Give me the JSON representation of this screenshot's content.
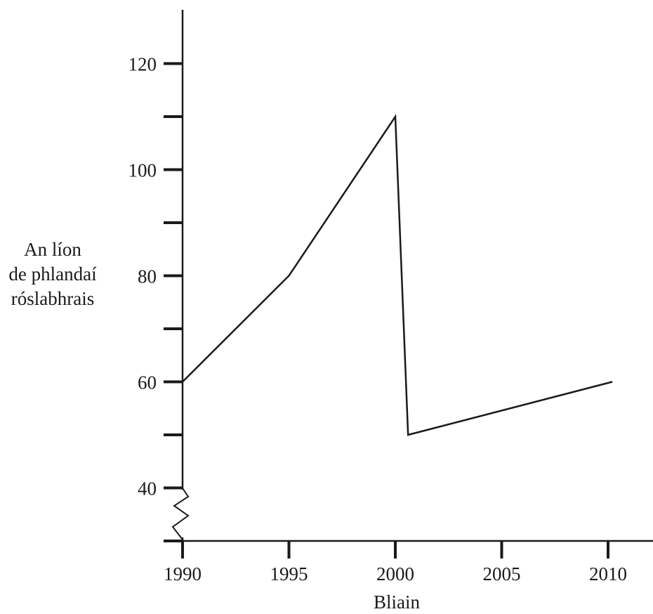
{
  "chart_data": {
    "type": "line",
    "xlabel": "Bliain",
    "ylabel_lines": [
      "An líon",
      "de phlandaí",
      "róslabhrais"
    ],
    "x_ticks": [
      1990,
      1995,
      2000,
      2005,
      2010
    ],
    "y_ticks": [
      40,
      60,
      80,
      100,
      120
    ],
    "y_minor_ticks": [
      30,
      50,
      70,
      90,
      110
    ],
    "xlim": [
      1990,
      2012
    ],
    "ylim": [
      30,
      130
    ],
    "y_axis_break": true,
    "grid": false,
    "series": [
      {
        "x": [
          1990,
          1995,
          2000,
          2000.6,
          2010.2
        ],
        "y": [
          60,
          80,
          110,
          50,
          60
        ]
      }
    ],
    "line_color": "#1a1a1a"
  }
}
